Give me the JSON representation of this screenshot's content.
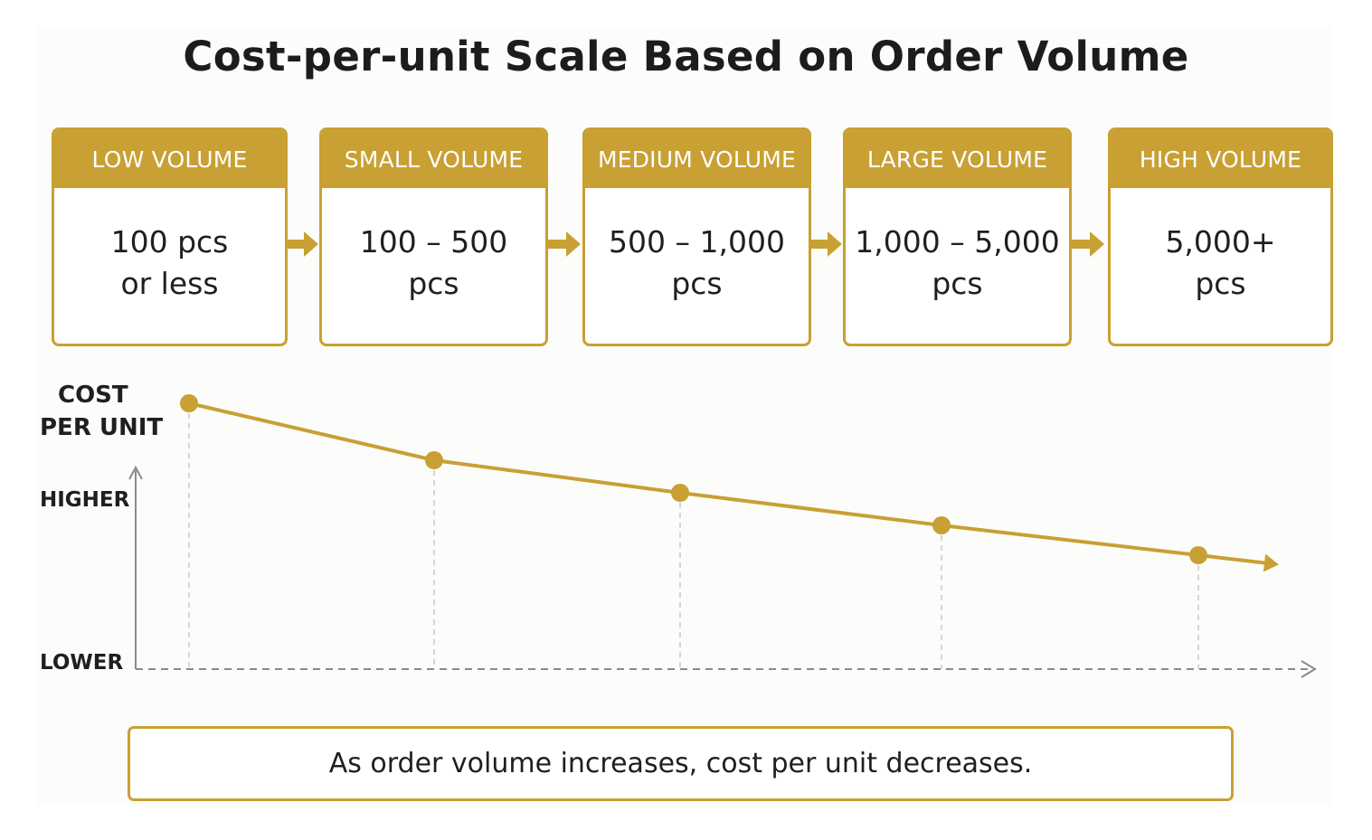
{
  "title": "Cost-per-unit Scale Based on Order Volume",
  "colors": {
    "accent": "#c8a033",
    "text": "#1f1f1f",
    "axis": "#8a8a8a"
  },
  "tiers": [
    {
      "label": "LOW VOLUME",
      "line1": "100 pcs",
      "line2": "or less"
    },
    {
      "label": "SMALL VOLUME",
      "line1": "100 – 500",
      "line2": "pcs"
    },
    {
      "label": "MEDIUM VOLUME",
      "line1": "500 – 1,000",
      "line2": "pcs"
    },
    {
      "label": "LARGE VOLUME",
      "line1": "1,000 – 5,000",
      "line2": "pcs"
    },
    {
      "label": "HIGH VOLUME",
      "line1": "5,000+",
      "line2": "pcs"
    }
  ],
  "chart_data": {
    "type": "line",
    "x": [
      "LOW VOLUME",
      "SMALL VOLUME",
      "MEDIUM VOLUME",
      "LARGE VOLUME",
      "HIGH VOLUME"
    ],
    "values": [
      0.98,
      0.77,
      0.65,
      0.53,
      0.42
    ],
    "value_scale": "relative, 0 = LOWER, 1 = HIGHER (no numeric ticks printed)",
    "ylim": [
      0,
      1.1
    ],
    "ylabel_line1": "COST",
    "ylabel_line2": "PER UNIT",
    "y_high_label": "HIGHER",
    "y_low_label": "LOWER",
    "grid": false,
    "trend_arrow": true
  },
  "summary": "As order volume increases, cost per unit decreases."
}
